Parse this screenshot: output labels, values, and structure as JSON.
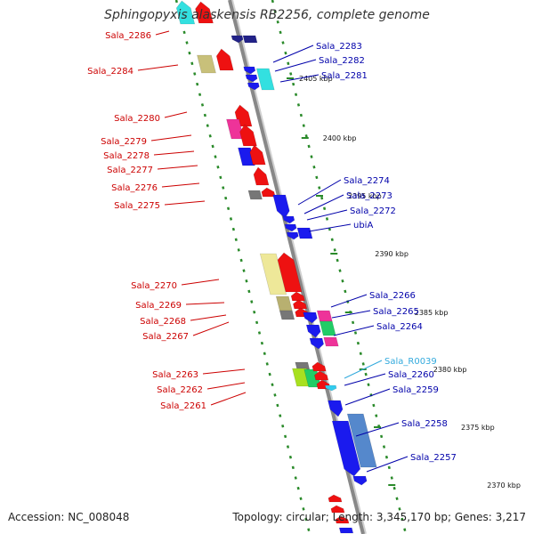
{
  "title": "Sphingopyxis alaskensis RB2256, complete genome",
  "footer": {
    "accession": "Accession: NC_008048",
    "topology": "Topology: circular; Length: 3,345,170 bp; Genes: 3,217"
  },
  "colors": {
    "plus_label": "#cc0000",
    "minus_label": "#0000aa",
    "rna_label": "#33aadd",
    "backbone": "#888888",
    "dots": "#2a8a2a"
  },
  "ticks": [
    {
      "label": "2405 kbp"
    },
    {
      "label": "2400 kbp"
    },
    {
      "label": "2395 kbp"
    },
    {
      "label": "2390 kbp"
    },
    {
      "label": "2385 kbp"
    },
    {
      "label": "2380 kbp"
    },
    {
      "label": "2375 kbp"
    },
    {
      "label": "2370 kbp"
    }
  ],
  "left_labels": [
    {
      "text": "Sala_2286"
    },
    {
      "text": "Sala_2284"
    },
    {
      "text": "Sala_2280"
    },
    {
      "text": "Sala_2279"
    },
    {
      "text": "Sala_2278"
    },
    {
      "text": "Sala_2277"
    },
    {
      "text": "Sala_2276"
    },
    {
      "text": "Sala_2275"
    },
    {
      "text": "Sala_2270"
    },
    {
      "text": "Sala_2269"
    },
    {
      "text": "Sala_2268"
    },
    {
      "text": "Sala_2267"
    },
    {
      "text": "Sala_2263"
    },
    {
      "text": "Sala_2262"
    },
    {
      "text": "Sala_2261"
    }
  ],
  "right_labels": [
    {
      "text": "Sala_2283",
      "kind": "minus"
    },
    {
      "text": "Sala_2282",
      "kind": "minus"
    },
    {
      "text": "Sala_2281",
      "kind": "minus"
    },
    {
      "text": "Sala_2274",
      "kind": "minus"
    },
    {
      "text": "Sala_2273",
      "kind": "minus"
    },
    {
      "text": "Sala_2272",
      "kind": "minus"
    },
    {
      "text": "ubiA",
      "kind": "minus"
    },
    {
      "text": "Sala_2266",
      "kind": "minus"
    },
    {
      "text": "Sala_2265",
      "kind": "minus"
    },
    {
      "text": "Sala_2264",
      "kind": "minus"
    },
    {
      "text": "Sala_R0039",
      "kind": "rna"
    },
    {
      "text": "Sala_2260",
      "kind": "minus"
    },
    {
      "text": "Sala_2259",
      "kind": "minus"
    },
    {
      "text": "Sala_2258",
      "kind": "minus"
    },
    {
      "text": "Sala_2257",
      "kind": "minus"
    }
  ],
  "features": [
    {
      "name": "cyan-gene",
      "color": "#33e0e0"
    },
    {
      "name": "red-gene",
      "color": "#ee1111"
    },
    {
      "name": "khaki-gene",
      "color": "#c8c07a"
    },
    {
      "name": "pink-gene",
      "color": "#ee3399"
    },
    {
      "name": "blue-gene",
      "color": "#1a1aee"
    },
    {
      "name": "gray-gene",
      "color": "#777777"
    },
    {
      "name": "pale-yellow-gene",
      "color": "#eee899"
    },
    {
      "name": "olive-gene",
      "color": "#b8b070"
    },
    {
      "name": "lime-gene",
      "color": "#a8e020"
    },
    {
      "name": "green-gene",
      "color": "#22cc66"
    },
    {
      "name": "steelblue-gene",
      "color": "#5588cc"
    },
    {
      "name": "navy-gene",
      "color": "#222288"
    },
    {
      "name": "lightblue-gene",
      "color": "#33ccee"
    }
  ]
}
